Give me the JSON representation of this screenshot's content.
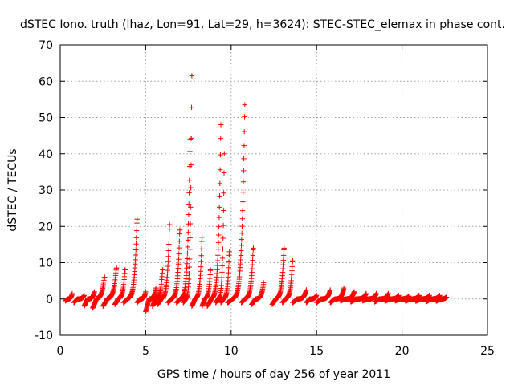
{
  "chart_data": {
    "type": "scatter",
    "title": "dSTEC Iono. truth (lhaz, Lon=91, Lat=29, h=3624): STEC-STEC_elemax in phase cont.",
    "xlabel": "GPS time / hours of day 256 of year 2011",
    "ylabel": "dSTEC  / TECUs",
    "xlim": [
      0,
      25
    ],
    "ylim": [
      -10,
      70
    ],
    "xticks": [
      0,
      5,
      10,
      15,
      20,
      25
    ],
    "yticks": [
      -10,
      0,
      10,
      20,
      30,
      40,
      50,
      60,
      70
    ],
    "grid": true,
    "marker": "+",
    "marker_color": "#ff0000",
    "arcs": [
      {
        "start": 0.3,
        "end": 0.7,
        "min": -0.5,
        "max": 1.5
      },
      {
        "start": 0.8,
        "end": 1.4,
        "min": -1,
        "max": 1
      },
      {
        "start": 1.4,
        "end": 2.0,
        "min": -2,
        "max": 2
      },
      {
        "start": 1.9,
        "end": 2.6,
        "min": -2.5,
        "max": 6
      },
      {
        "start": 2.5,
        "end": 3.3,
        "min": -2,
        "max": 8.5
      },
      {
        "start": 3.2,
        "end": 3.8,
        "min": -1.5,
        "max": 8
      },
      {
        "start": 3.7,
        "end": 4.5,
        "min": -1,
        "max": 22
      },
      {
        "start": 4.5,
        "end": 5.0,
        "min": -1,
        "max": 2
      },
      {
        "start": 5.0,
        "end": 5.6,
        "min": -3.5,
        "max": 3
      },
      {
        "start": 5.4,
        "end": 6.0,
        "min": -2,
        "max": 8
      },
      {
        "start": 5.7,
        "end": 6.4,
        "min": -1.5,
        "max": 20.5
      },
      {
        "start": 6.3,
        "end": 7.0,
        "min": -1,
        "max": 19
      },
      {
        "start": 6.8,
        "end": 7.6,
        "min": -1,
        "max": 44
      },
      {
        "start": 7.2,
        "end": 7.7,
        "min": -1,
        "max": 61.5
      },
      {
        "start": 7.7,
        "end": 8.3,
        "min": -2,
        "max": 17
      },
      {
        "start": 8.3,
        "end": 8.8,
        "min": -2,
        "max": 8
      },
      {
        "start": 8.6,
        "end": 9.4,
        "min": -2,
        "max": 48
      },
      {
        "start": 9.1,
        "end": 9.6,
        "min": -1,
        "max": 40
      },
      {
        "start": 9.4,
        "end": 9.9,
        "min": -1,
        "max": 13
      },
      {
        "start": 9.8,
        "end": 10.8,
        "min": -1,
        "max": 53.5
      },
      {
        "start": 10.6,
        "end": 11.3,
        "min": -1,
        "max": 14
      },
      {
        "start": 11.2,
        "end": 11.9,
        "min": -1.5,
        "max": 4.5
      },
      {
        "start": 12.4,
        "end": 13.1,
        "min": -1.5,
        "max": 14
      },
      {
        "start": 13.0,
        "end": 13.6,
        "min": -1,
        "max": 10.5
      },
      {
        "start": 13.6,
        "end": 14.4,
        "min": -1,
        "max": 2.5
      },
      {
        "start": 14.4,
        "end": 15.0,
        "min": -1,
        "max": 1
      },
      {
        "start": 15.0,
        "end": 15.8,
        "min": -1,
        "max": 2.5
      },
      {
        "start": 15.8,
        "end": 16.6,
        "min": -1,
        "max": 3
      },
      {
        "start": 16.4,
        "end": 17.2,
        "min": -0.5,
        "max": 2
      },
      {
        "start": 17.0,
        "end": 17.9,
        "min": -0.8,
        "max": 1.5
      },
      {
        "start": 17.7,
        "end": 18.5,
        "min": -0.5,
        "max": 1.5
      },
      {
        "start": 18.4,
        "end": 19.2,
        "min": -0.8,
        "max": 1.5
      },
      {
        "start": 19.0,
        "end": 19.8,
        "min": -0.6,
        "max": 1
      },
      {
        "start": 19.6,
        "end": 20.4,
        "min": -0.5,
        "max": 0.8
      },
      {
        "start": 20.2,
        "end": 21.0,
        "min": -0.6,
        "max": 1
      },
      {
        "start": 20.8,
        "end": 21.6,
        "min": -0.6,
        "max": 1
      },
      {
        "start": 21.4,
        "end": 22.2,
        "min": -0.8,
        "max": 1
      },
      {
        "start": 22.0,
        "end": 22.6,
        "min": -0.6,
        "max": 0.5
      }
    ]
  }
}
